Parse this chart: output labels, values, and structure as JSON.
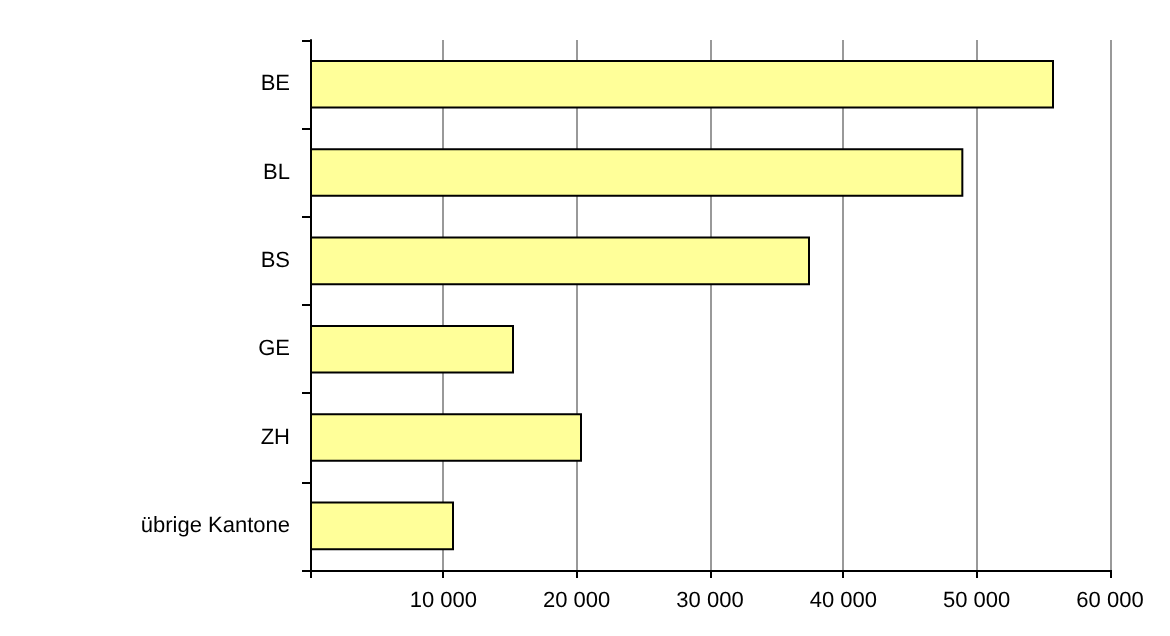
{
  "chart_data": {
    "type": "bar",
    "orientation": "horizontal",
    "categories": [
      "BE",
      "BL",
      "BS",
      "GE",
      "ZH",
      "übrige Kantone"
    ],
    "values": [
      55800,
      49000,
      37500,
      15300,
      20400,
      10800
    ],
    "color": "#ffff99",
    "xlim": [
      0,
      60000
    ],
    "xticks": [
      {
        "value": 0,
        "label": null
      },
      {
        "value": 10000,
        "label": "10 000"
      },
      {
        "value": 20000,
        "label": "20 000"
      },
      {
        "value": 30000,
        "label": "30 000"
      },
      {
        "value": 40000,
        "label": "40 000"
      },
      {
        "value": 50000,
        "label": "50 000"
      },
      {
        "value": 60000,
        "label": "60 000"
      }
    ],
    "grid": "x"
  }
}
